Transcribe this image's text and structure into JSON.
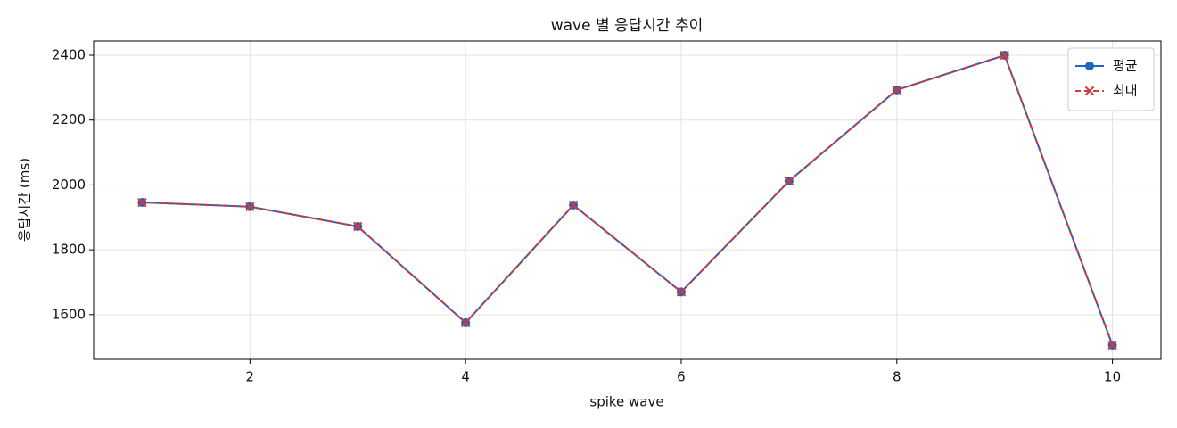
{
  "chart_data": {
    "type": "line",
    "title": "wave 별 응답시간 추이",
    "x_label": "spike wave",
    "y_label": "응답시간 (ms)",
    "x": [
      1,
      2,
      3,
      4,
      5,
      6,
      7,
      8,
      9,
      10
    ],
    "series": [
      {
        "name": "평균",
        "color": "#1f63c4",
        "marker": "circle",
        "dashed": false,
        "values": [
          1946,
          1933,
          1872,
          1575,
          1938,
          1670,
          2012,
          2293,
          2400,
          1506
        ]
      },
      {
        "name": "최대",
        "color": "#d03a3a",
        "marker": "cross",
        "dashed": true,
        "values": [
          1946,
          1933,
          1872,
          1575,
          1938,
          1670,
          2012,
          2293,
          2400,
          1506
        ]
      }
    ],
    "xlim": [
      0.55,
      10.45
    ],
    "xticks": [
      2,
      4,
      6,
      8,
      10
    ],
    "ylim": [
      1462,
      2444
    ],
    "yticks": [
      1600,
      1800,
      2000,
      2200,
      2400
    ],
    "grid": true,
    "legend": "upper right"
  }
}
